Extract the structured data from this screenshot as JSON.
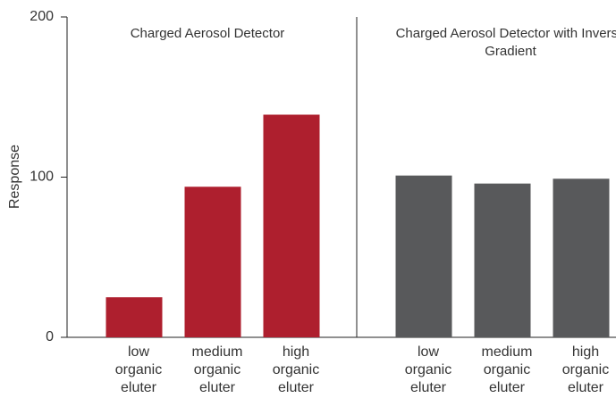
{
  "chart_data": [
    {
      "type": "bar",
      "title": "Charged Aerosol Detector",
      "ylabel": "Response",
      "categories": [
        "low organic eluter",
        "medium organic eluter",
        "high organic eluter"
      ],
      "values": [
        25,
        94,
        139
      ],
      "color": "#ae1f2e",
      "ylim": [
        0,
        200
      ],
      "yticks": [
        0,
        100,
        200
      ]
    },
    {
      "type": "bar",
      "title": "Charged Aerosol Detector with Inverse Gradient",
      "categories": [
        "low organic eluter",
        "medium organic eluter",
        "high organic eluter"
      ],
      "values": [
        101,
        96,
        99
      ],
      "color": "#58595b"
    }
  ]
}
